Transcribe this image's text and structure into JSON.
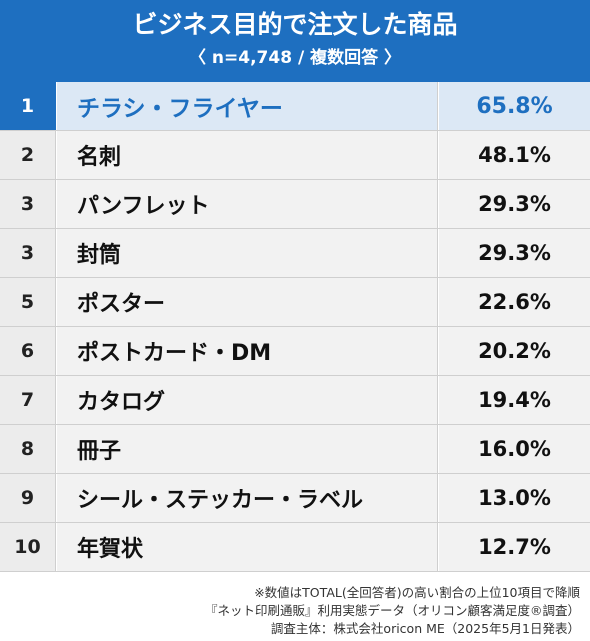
{
  "header": {
    "title": "ビジネス目的で注文した商品",
    "subtitle": "〈 n=4,748 / 複数回答 〉"
  },
  "colors": {
    "accent": "#1e6fc0",
    "highlight_bg": "#dce8f5",
    "row_bg": "#f2f2f2",
    "rank_bg": "#ececec"
  },
  "chart_data": {
    "type": "table",
    "title": "ビジネス目的で注文した商品",
    "subtitle": "〈 n=4,748 / 複数回答 〉",
    "rows": [
      {
        "rank": "1",
        "item": "チラシ・フライヤー",
        "value": "65.8%"
      },
      {
        "rank": "2",
        "item": "名刺",
        "value": "48.1%"
      },
      {
        "rank": "3",
        "item": "パンフレット",
        "value": "29.3%"
      },
      {
        "rank": "3",
        "item": "封筒",
        "value": "29.3%"
      },
      {
        "rank": "5",
        "item": "ポスター",
        "value": "22.6%"
      },
      {
        "rank": "6",
        "item": "ポストカード・DM",
        "value": "20.2%"
      },
      {
        "rank": "7",
        "item": "カタログ",
        "value": "19.4%"
      },
      {
        "rank": "8",
        "item": "冊子",
        "value": "16.0%"
      },
      {
        "rank": "9",
        "item": "シール・ステッカー・ラベル",
        "value": "13.0%"
      },
      {
        "rank": "10",
        "item": "年賀状",
        "value": "12.7%"
      }
    ]
  },
  "notes": {
    "line1": "※数値はTOTAL(全回答者)の高い割合の上位10項目で降順",
    "line2": "『ネット印刷通販』利用実態データ（オリコン顧客満足度®調査）",
    "line3": "調査主体：株式会社oricon ME（2025年5月1日発表）"
  }
}
